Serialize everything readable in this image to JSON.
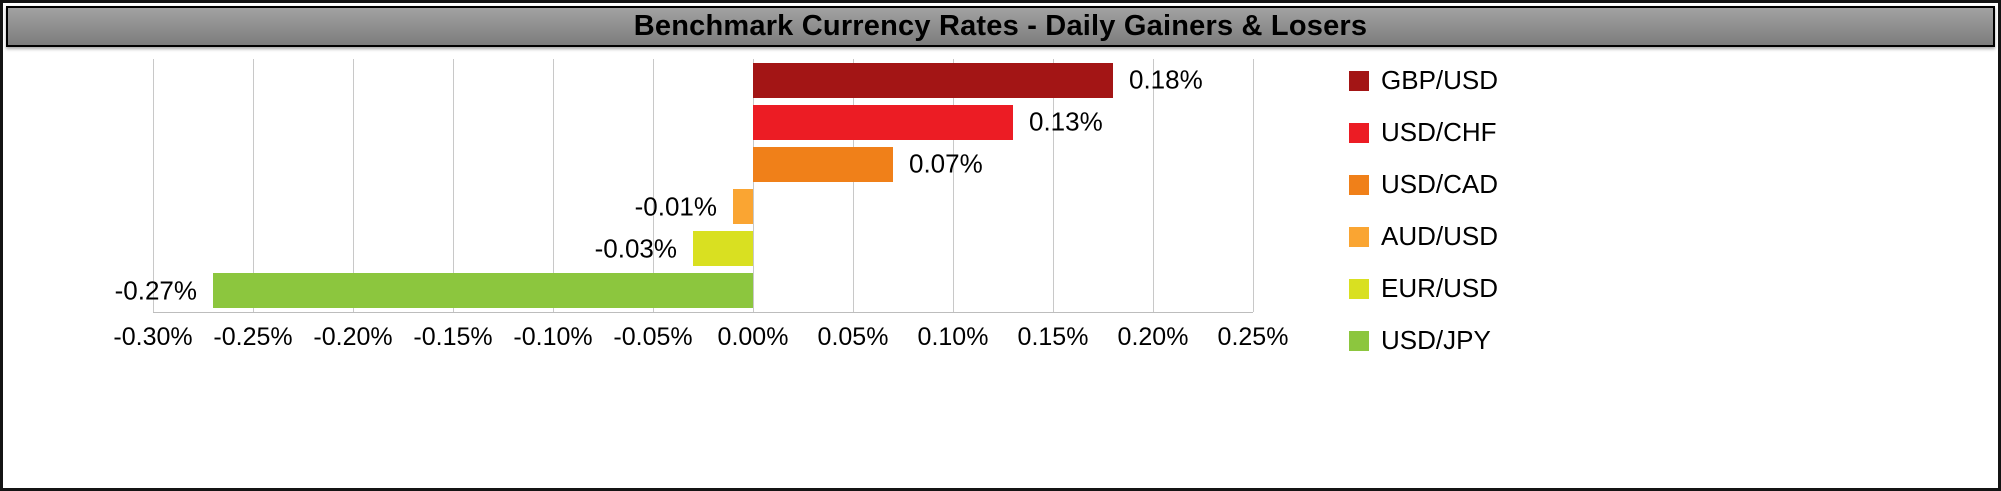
{
  "chart_data": {
    "type": "bar",
    "orientation": "horizontal",
    "title": "Benchmark Currency Rates - Daily Gainers & Losers",
    "categories": [
      "GBP/USD",
      "USD/CHF",
      "USD/CAD",
      "AUD/USD",
      "EUR/USD",
      "USD/JPY"
    ],
    "values": [
      0.18,
      0.13,
      0.07,
      -0.01,
      -0.03,
      -0.27
    ],
    "value_labels": [
      "0.18%",
      "0.13%",
      "0.07%",
      "-0.01%",
      "-0.03%",
      "-0.27%"
    ],
    "colors": [
      "#A31515",
      "#EC1C24",
      "#F08019",
      "#FAA532",
      "#D9E021",
      "#8CC63E"
    ],
    "xlim": [
      -0.3,
      0.25
    ],
    "x_ticks": [
      {
        "value": -0.3,
        "label": "-0.30%"
      },
      {
        "value": -0.25,
        "label": "-0.25%"
      },
      {
        "value": -0.2,
        "label": "-0.20%"
      },
      {
        "value": -0.15,
        "label": "-0.15%"
      },
      {
        "value": -0.1,
        "label": "-0.10%"
      },
      {
        "value": -0.05,
        "label": "-0.05%"
      },
      {
        "value": 0.0,
        "label": "0.00%"
      },
      {
        "value": 0.05,
        "label": "0.05%"
      },
      {
        "value": 0.1,
        "label": "0.10%"
      },
      {
        "value": 0.15,
        "label": "0.15%"
      },
      {
        "value": 0.2,
        "label": "0.20%"
      },
      {
        "value": 0.25,
        "label": "0.25%"
      }
    ],
    "legend_position": "right",
    "grid": "vertical"
  }
}
